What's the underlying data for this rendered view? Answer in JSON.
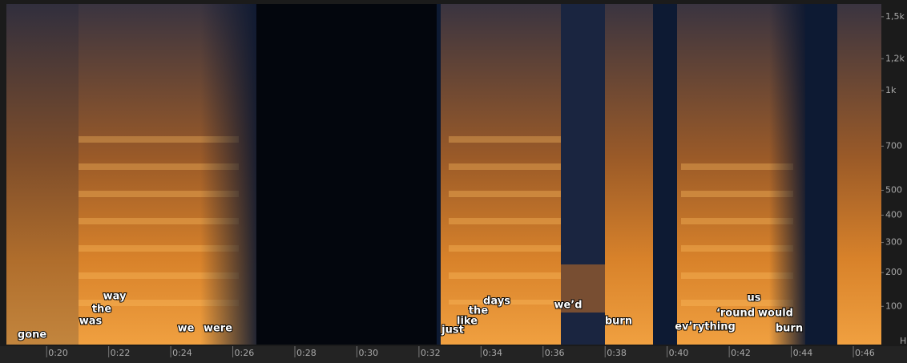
{
  "chart_data": {
    "type": "spectrogram",
    "xlim": [
      18.6,
      46.8
    ],
    "xticks": [
      {
        "value": 20,
        "label": "0:20"
      },
      {
        "value": 22,
        "label": "0:22"
      },
      {
        "value": 24,
        "label": "0:24"
      },
      {
        "value": 26,
        "label": "0:26"
      },
      {
        "value": 28,
        "label": "0:28"
      },
      {
        "value": 30,
        "label": "0:30"
      },
      {
        "value": 32,
        "label": "0:32"
      },
      {
        "value": 34,
        "label": "0:34"
      },
      {
        "value": 36,
        "label": "0:36"
      },
      {
        "value": 38,
        "label": "0:38"
      },
      {
        "value": 40,
        "label": "0:40"
      },
      {
        "value": 42,
        "label": "0:42"
      },
      {
        "value": 44,
        "label": "0:44"
      },
      {
        "value": 46,
        "label": "0:46"
      }
    ],
    "ylim": [
      0,
      1600
    ],
    "yscale": "mel",
    "yticks": [
      100,
      200,
      300,
      400,
      500,
      700,
      {
        "value": 1000,
        "label": "1k"
      },
      {
        "value": 1200,
        "label": "1,2k"
      },
      {
        "value": 1500,
        "label": "1,5k"
      }
    ],
    "yunit": "H",
    "words": [
      "gone",
      "was",
      "the",
      "way",
      "we",
      "were",
      "just",
      "like",
      "the",
      "days",
      "we’d",
      "burn",
      "ev’rything",
      "‘round",
      "us",
      "would",
      "burn"
    ]
  }
}
